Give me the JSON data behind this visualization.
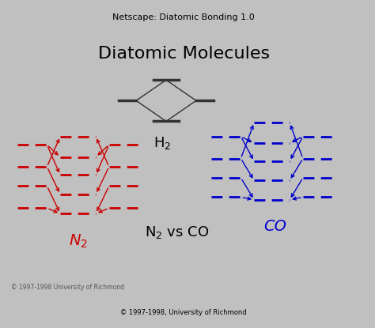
{
  "title": "Diatomic Molecules",
  "title_fontsize": 20,
  "bg_color": "#e8e8e8",
  "content_bg": "#f5f5f5",
  "window_title": "Netscape: Diatomic Bonding 1.0",
  "footer": "© 1997-1998, University of Richmond",
  "footer2": "© 1997-1998 University of Richmond",
  "h2_label": "H$_2$",
  "n2_label": "N$_2$",
  "co_label": "CO",
  "center_label": "N$_2$ vs CO",
  "red": "#cc0000",
  "blue": "#0000cc",
  "black": "#222222",
  "gray": "#666666"
}
